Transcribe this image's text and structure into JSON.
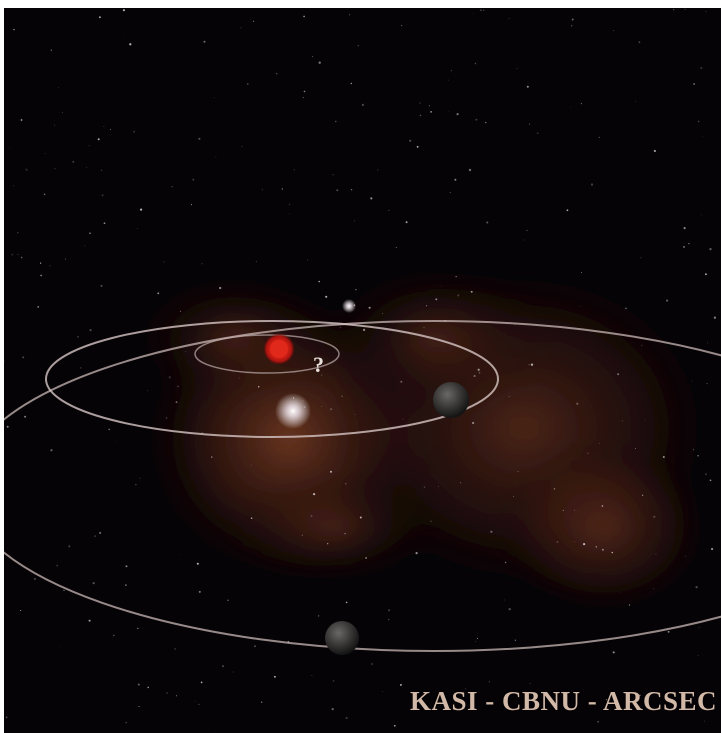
{
  "image": {
    "alt": "",
    "credit_text": "KASI - CBNU - ARCSEC",
    "unknown_marker": "?"
  },
  "colors": {
    "background": "#050306",
    "nebula": "#7a3a22",
    "orbit": "#c9b8b6",
    "host_star": "#d21f14",
    "credit": "#d2b8a6"
  }
}
